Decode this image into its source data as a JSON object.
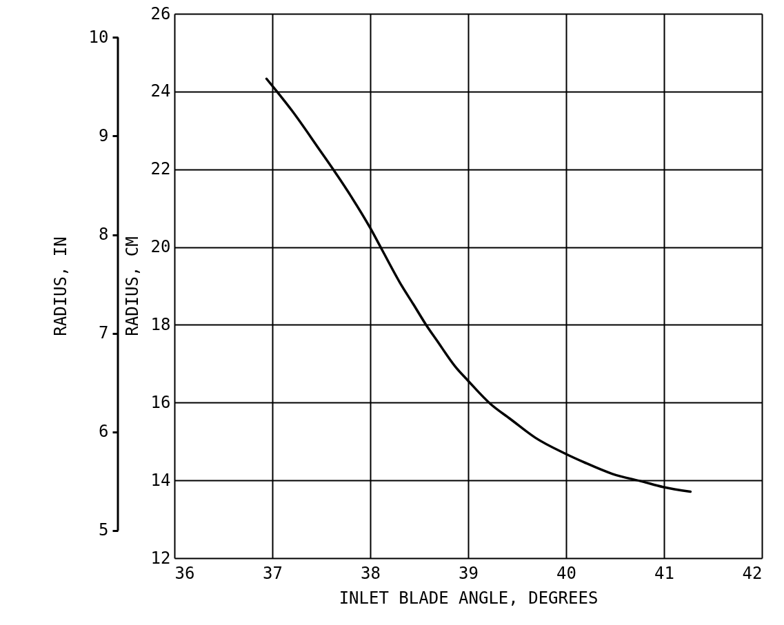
{
  "chart_data": {
    "type": "line",
    "xlabel": "INLET BLADE ANGLE, DEGREES",
    "ylabel": "RADIUS, CM",
    "y2label": "RADIUS, IN",
    "xlim": [
      36,
      42
    ],
    "xticks": [
      36,
      37,
      38,
      39,
      40,
      41,
      42
    ],
    "ylim": [
      12,
      26
    ],
    "yticks": [
      12,
      14,
      16,
      18,
      20,
      22,
      24,
      26
    ],
    "y2lim": [
      4.72,
      10.24
    ],
    "y2ticks": [
      5,
      6,
      7,
      8,
      9,
      10
    ],
    "grid": true,
    "marker": "none",
    "line_style": "solid",
    "series": [
      {
        "color": "#000000",
        "x": [
          36.94,
          37.05,
          37.2,
          37.48,
          37.64,
          37.8,
          38.0,
          38.12,
          38.32,
          38.44,
          38.57,
          38.68,
          38.87,
          39.0,
          39.23,
          39.43,
          39.69,
          39.99,
          40.18,
          40.47,
          40.78,
          40.99,
          41.27
        ],
        "values": [
          24.33,
          23.99,
          23.51,
          22.51,
          21.93,
          21.32,
          20.49,
          19.93,
          19.01,
          18.53,
          18.0,
          17.6,
          16.92,
          16.56,
          15.96,
          15.58,
          15.09,
          14.69,
          14.47,
          14.17,
          13.97,
          13.83,
          13.71
        ]
      }
    ]
  }
}
